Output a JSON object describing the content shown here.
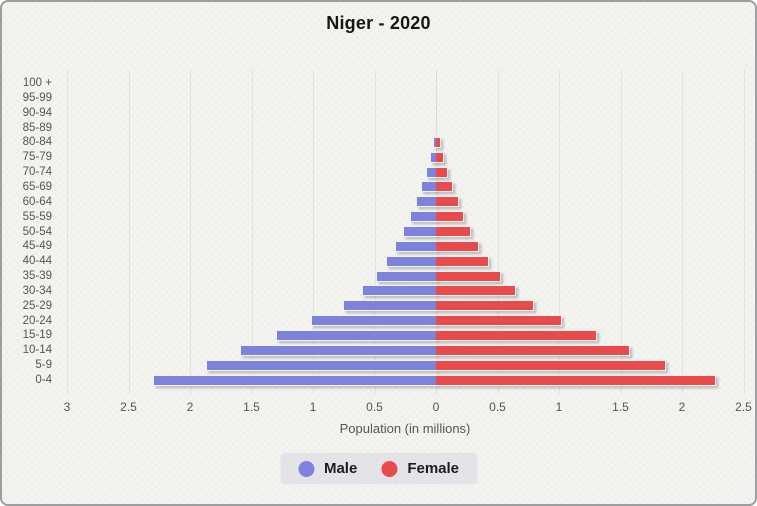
{
  "title": "Niger - 2020",
  "xlabel": "Population (in millions)",
  "legend": {
    "male": "Male",
    "female": "Female"
  },
  "colors": {
    "male": "#7d82dc",
    "female": "#e94b4d",
    "legend_bg": "#e4e4e8",
    "card_bg": "#f4f4f1",
    "card_border": "#9e9e9e",
    "grid": "#e2e2de",
    "axis_text": "#555555",
    "title_text": "#161616"
  },
  "chart_data": {
    "type": "bar",
    "subtype": "population-pyramid",
    "title": "Niger - 2020",
    "xlabel": "Population (in millions)",
    "unit": "millions of people",
    "grid": true,
    "legend_position": "bottom",
    "xlim": [
      -3,
      3
    ],
    "x_tick_labels": [
      "3",
      "2.5",
      "2",
      "1.5",
      "1",
      "0.5",
      "0",
      "0.5",
      "1",
      "1.5",
      "2",
      "2.5"
    ],
    "categories": [
      "100 +",
      "95-99",
      "90-94",
      "85-89",
      "80-84",
      "75-79",
      "70-74",
      "65-69",
      "60-64",
      "55-59",
      "50-54",
      "45-49",
      "40-44",
      "35-39",
      "30-34",
      "25-29",
      "20-24",
      "15-19",
      "10-14",
      "5-9",
      "0-4"
    ],
    "series": [
      {
        "name": "Male",
        "side": "left",
        "color": "#7d82dc",
        "values": [
          0.0001,
          0.0003,
          0.002,
          0.009,
          0.025,
          0.05,
          0.08,
          0.12,
          0.16,
          0.21,
          0.27,
          0.33,
          0.41,
          0.49,
          0.6,
          0.76,
          1.02,
          1.3,
          1.59,
          1.87,
          2.3
        ]
      },
      {
        "name": "Female",
        "side": "right",
        "color": "#e94b4d",
        "values": [
          0.0001,
          0.0004,
          0.003,
          0.011,
          0.03,
          0.06,
          0.09,
          0.13,
          0.18,
          0.22,
          0.28,
          0.34,
          0.42,
          0.52,
          0.64,
          0.79,
          1.02,
          1.3,
          1.57,
          1.86,
          2.27
        ]
      }
    ]
  }
}
